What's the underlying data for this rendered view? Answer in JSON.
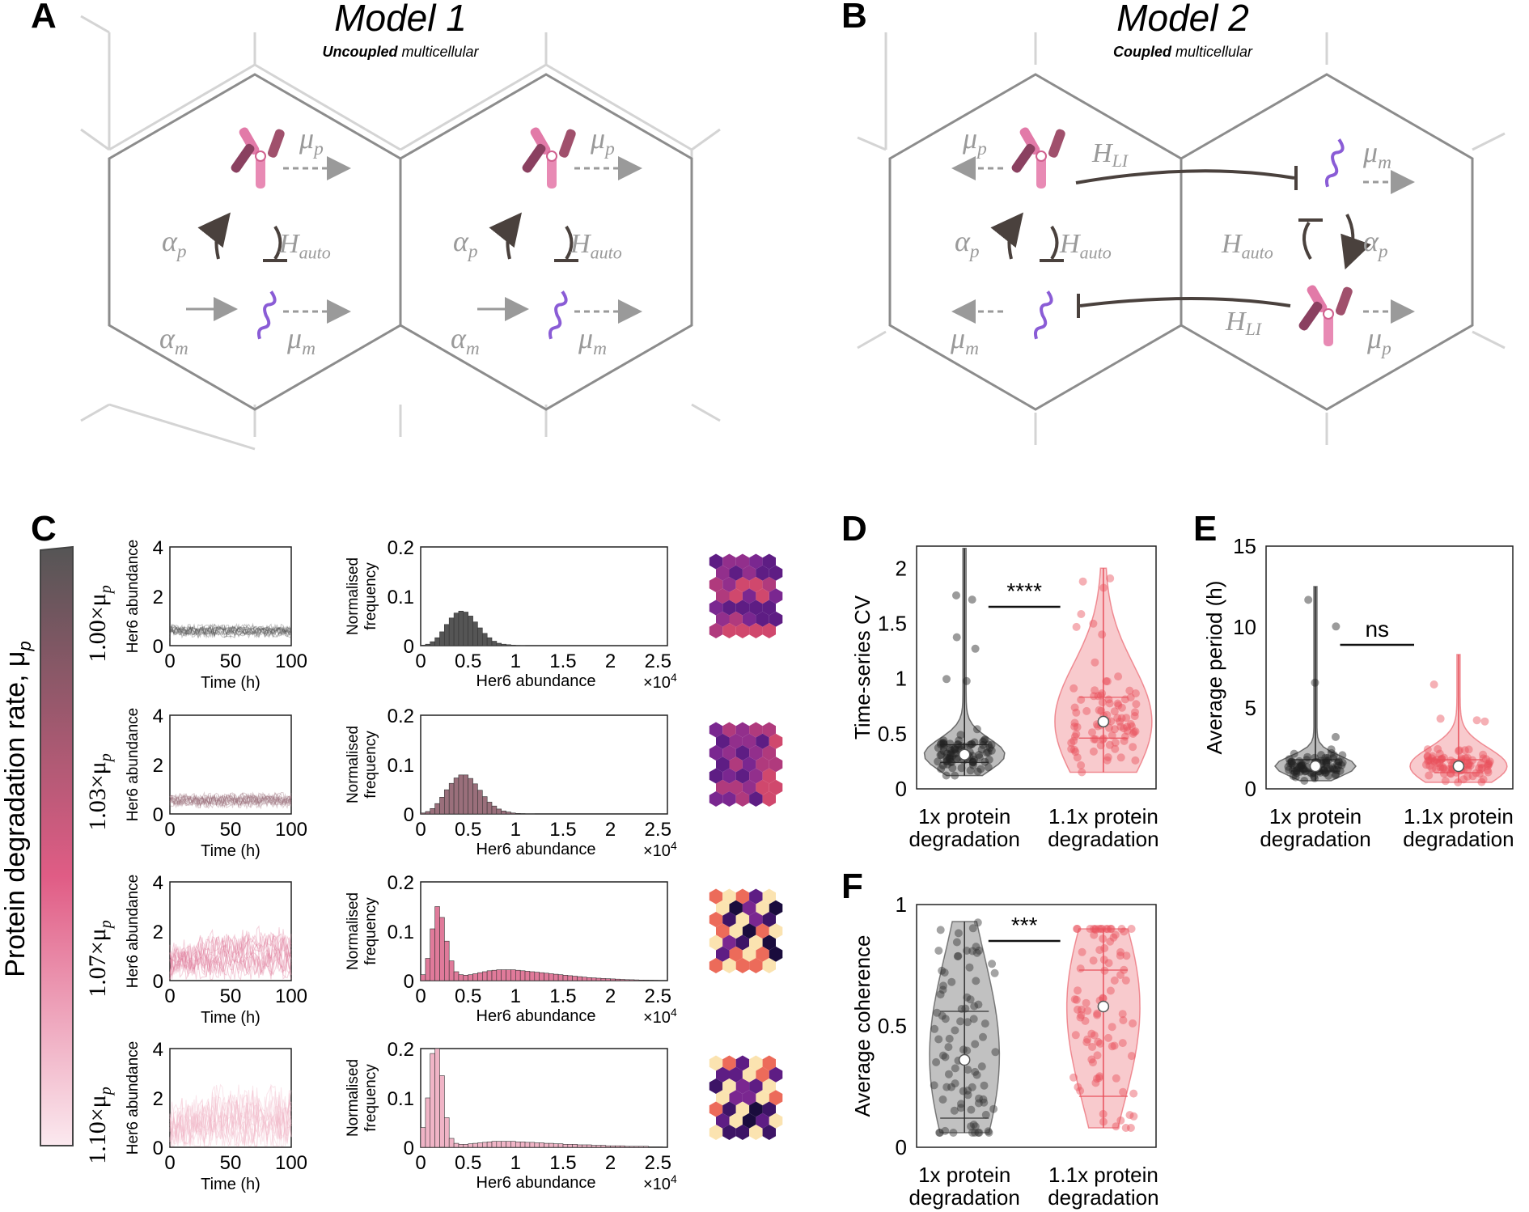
{
  "panels": {
    "A": {
      "letter": "A",
      "title": "Model 1",
      "subtitle_bold": "Uncoupled",
      "subtitle_rest": " multicellular",
      "labels": {
        "mu_p": "μ",
        "mu_p_sub": "p",
        "alpha_p": "α",
        "alpha_p_sub": "p",
        "h_auto": "H",
        "h_auto_sub": "auto",
        "alpha_m": "α",
        "alpha_m_sub": "m",
        "mu_m": "μ",
        "mu_m_sub": "m"
      }
    },
    "B": {
      "letter": "B",
      "title": "Model 2",
      "subtitle_bold": "Coupled",
      "subtitle_rest": " multicellular",
      "labels": {
        "h_li": "H",
        "h_li_sub": "LI"
      }
    },
    "C": {
      "letter": "C",
      "gradient_label": "Protein degradation rate, μ",
      "gradient_label_sub": "p",
      "rows": [
        {
          "rate": "1.00×μ",
          "color": "#555555"
        },
        {
          "rate": "1.03×μ",
          "color": "#9a6f7b"
        },
        {
          "rate": "1.07×μ",
          "color": "#e07a9a"
        },
        {
          "rate": "1.10×μ",
          "color": "#f0b4c6"
        }
      ],
      "rate_sub": "p",
      "ts_ylabel": "Her6 abundance",
      "ts_xlabel": "Time (h)",
      "ts_xticks": [
        "0",
        "50",
        "100"
      ],
      "ts_yticks": [
        "0",
        "2",
        "4"
      ],
      "hist_ylabel_1": "Normalised",
      "hist_ylabel_2": "frequency",
      "hist_xlabel": "Her6 abundance",
      "hist_xticks": [
        "0",
        "0.5",
        "1",
        "1.5",
        "2",
        "2.5"
      ],
      "hist_yticks": [
        "0",
        "0.1",
        "0.2"
      ],
      "hist_exponent_base": "×10",
      "hist_exponent_power": "4"
    },
    "D": {
      "letter": "D"
    },
    "E": {
      "letter": "E"
    },
    "F": {
      "letter": "F"
    }
  },
  "chart_data": [
    {
      "id": "C-hist-1",
      "type": "bar",
      "x": [
        0.05,
        0.1,
        0.15,
        0.2,
        0.25,
        0.3,
        0.35,
        0.4,
        0.45,
        0.5,
        0.55,
        0.6,
        0.65,
        0.7,
        0.75,
        0.8,
        0.85,
        0.9,
        0.95,
        1.0,
        1.05,
        1.1
      ],
      "values": [
        0.001,
        0.003,
        0.008,
        0.016,
        0.028,
        0.043,
        0.056,
        0.066,
        0.07,
        0.068,
        0.06,
        0.048,
        0.036,
        0.025,
        0.016,
        0.009,
        0.005,
        0.003,
        0.002,
        0.001,
        0.0005,
        0.0002
      ],
      "xlabel": "Her6 abundance",
      "ylabel": "Normalised frequency",
      "xlim": [
        0,
        2.6
      ],
      "ylim": [
        0,
        0.2
      ],
      "x_multiplier": "×10^4"
    },
    {
      "id": "C-hist-2",
      "type": "bar",
      "x": [
        0.05,
        0.1,
        0.15,
        0.2,
        0.25,
        0.3,
        0.35,
        0.4,
        0.45,
        0.5,
        0.55,
        0.6,
        0.65,
        0.7,
        0.75,
        0.8,
        0.85,
        0.9,
        0.95,
        1.0,
        1.05,
        1.1,
        1.15,
        1.2
      ],
      "values": [
        0.002,
        0.005,
        0.011,
        0.021,
        0.034,
        0.049,
        0.062,
        0.073,
        0.079,
        0.079,
        0.072,
        0.061,
        0.048,
        0.035,
        0.024,
        0.016,
        0.01,
        0.006,
        0.004,
        0.002,
        0.0012,
        0.0007,
        0.0004,
        0.0002
      ],
      "xlabel": "Her6 abundance",
      "ylabel": "Normalised frequency",
      "xlim": [
        0,
        2.6
      ],
      "ylim": [
        0,
        0.2
      ],
      "x_multiplier": "×10^4"
    },
    {
      "id": "C-hist-3",
      "type": "bar",
      "x": [
        0.05,
        0.1,
        0.15,
        0.2,
        0.25,
        0.3,
        0.35,
        0.4,
        0.45,
        0.5,
        0.55,
        0.6,
        0.65,
        0.7,
        0.75,
        0.8,
        0.85,
        0.9,
        0.95,
        1.0,
        1.05,
        1.1,
        1.15,
        1.2,
        1.25,
        1.3,
        1.35,
        1.4,
        1.45,
        1.5,
        1.55,
        1.6,
        1.65,
        1.7,
        1.75,
        1.8,
        1.85,
        1.9,
        1.95,
        2.0,
        2.05,
        2.1,
        2.15,
        2.2,
        2.25,
        2.3,
        2.35,
        2.4,
        2.45,
        2.5
      ],
      "values": [
        0.012,
        0.045,
        0.105,
        0.15,
        0.128,
        0.08,
        0.04,
        0.018,
        0.012,
        0.011,
        0.012,
        0.014,
        0.016,
        0.018,
        0.02,
        0.021,
        0.022,
        0.022,
        0.022,
        0.022,
        0.021,
        0.02,
        0.019,
        0.018,
        0.017,
        0.016,
        0.015,
        0.014,
        0.013,
        0.012,
        0.011,
        0.01,
        0.009,
        0.008,
        0.007,
        0.006,
        0.0055,
        0.005,
        0.0045,
        0.004,
        0.0035,
        0.003,
        0.0025,
        0.002,
        0.0018,
        0.0015,
        0.0012,
        0.001,
        0.0008,
        0.0006
      ],
      "xlabel": "Her6 abundance",
      "ylabel": "Normalised frequency",
      "xlim": [
        0,
        2.6
      ],
      "ylim": [
        0,
        0.2
      ],
      "x_multiplier": "×10^4"
    },
    {
      "id": "C-hist-4",
      "type": "bar",
      "x": [
        0.05,
        0.1,
        0.15,
        0.2,
        0.25,
        0.3,
        0.35,
        0.4,
        0.45,
        0.5,
        0.55,
        0.6,
        0.65,
        0.7,
        0.75,
        0.8,
        0.85,
        0.9,
        0.95,
        1.0,
        1.05,
        1.1,
        1.15,
        1.2,
        1.25,
        1.3,
        1.35,
        1.4,
        1.45,
        1.5,
        1.55,
        1.6,
        1.65,
        1.7,
        1.75,
        1.8,
        1.85,
        1.9,
        1.95,
        2.0,
        2.05,
        2.1,
        2.15,
        2.2,
        2.25,
        2.3,
        2.35,
        2.4,
        2.45,
        2.5,
        2.55
      ],
      "values": [
        0.04,
        0.1,
        0.19,
        0.205,
        0.145,
        0.06,
        0.018,
        0.008,
        0.006,
        0.006,
        0.007,
        0.008,
        0.009,
        0.01,
        0.011,
        0.012,
        0.012,
        0.012,
        0.012,
        0.012,
        0.011,
        0.011,
        0.01,
        0.01,
        0.009,
        0.009,
        0.008,
        0.008,
        0.007,
        0.007,
        0.006,
        0.006,
        0.006,
        0.005,
        0.005,
        0.005,
        0.004,
        0.004,
        0.004,
        0.003,
        0.003,
        0.003,
        0.003,
        0.002,
        0.002,
        0.002,
        0.002,
        0.002,
        0.001,
        0.001,
        0.001
      ],
      "xlabel": "Her6 abundance",
      "ylabel": "Normalised frequency",
      "xlim": [
        0,
        2.6
      ],
      "ylim": [
        0,
        0.2
      ],
      "x_multiplier": "×10^4"
    },
    {
      "id": "D",
      "type": "scatter",
      "subtype": "violin",
      "categories": [
        "1x protein degradation",
        "1.1x protein degradation"
      ],
      "ylabel": "Time-series CV",
      "ylim": [
        0,
        2.2
      ],
      "yticks": [
        "0",
        "0.5",
        "1",
        "1.5",
        "2"
      ],
      "significance": "****",
      "series": [
        {
          "color": "#222222",
          "median": 0.31,
          "q1": 0.24,
          "q3": 0.4,
          "max": 2.18,
          "min": 0.12
        },
        {
          "color": "#e8505b",
          "median": 0.61,
          "q1": 0.46,
          "q3": 0.83,
          "max": 2.0,
          "min": 0.15
        }
      ]
    },
    {
      "id": "E",
      "type": "scatter",
      "subtype": "violin",
      "categories": [
        "1x protein degradation",
        "1.1x protein degradation"
      ],
      "ylabel": "Average period (h)",
      "ylim": [
        0,
        15
      ],
      "yticks": [
        "0",
        "5",
        "10",
        "15"
      ],
      "significance": "ns",
      "series": [
        {
          "color": "#222222",
          "median": 1.4,
          "q1": 1.1,
          "q3": 1.8,
          "max": 12.5,
          "min": 0.5
        },
        {
          "color": "#e8505b",
          "median": 1.4,
          "q1": 1.0,
          "q3": 1.8,
          "max": 8.3,
          "min": 0.4
        }
      ]
    },
    {
      "id": "F",
      "type": "scatter",
      "subtype": "violin",
      "categories": [
        "1x protein degradation",
        "1.1x protein degradation"
      ],
      "ylabel": "Average coherence",
      "ylim": [
        0,
        1
      ],
      "yticks": [
        "0",
        "0.5",
        "1"
      ],
      "significance": "***",
      "series": [
        {
          "color": "#333333",
          "median": 0.36,
          "q1": 0.12,
          "q3": 0.56,
          "max": 0.93,
          "min": 0.06
        },
        {
          "color": "#e8505b",
          "median": 0.58,
          "q1": 0.21,
          "q3": 0.73,
          "max": 0.9,
          "min": 0.08
        }
      ]
    }
  ]
}
